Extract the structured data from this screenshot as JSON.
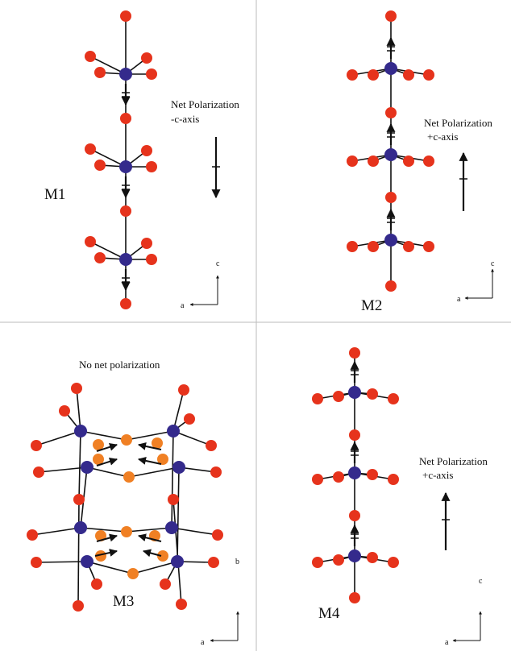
{
  "panels": [
    {
      "label": "M1",
      "annotation": [
        "Net Polarization",
        "-c-axis"
      ],
      "axes": {
        "vertical": "c",
        "horizontal": "a"
      }
    },
    {
      "label": "M2",
      "annotation": [
        "Net Polarization",
        "+c-axis"
      ],
      "axes": {
        "vertical": "c",
        "horizontal": "a"
      }
    },
    {
      "label": "M3",
      "annotation": [
        "No net polarization"
      ],
      "axes": {
        "vertical": "b",
        "horizontal": "a"
      }
    },
    {
      "label": "M4",
      "annotation": [
        "Net Polarization",
        "+c-axis"
      ],
      "axes": {
        "vertical": "c",
        "horizontal": "a"
      }
    }
  ]
}
